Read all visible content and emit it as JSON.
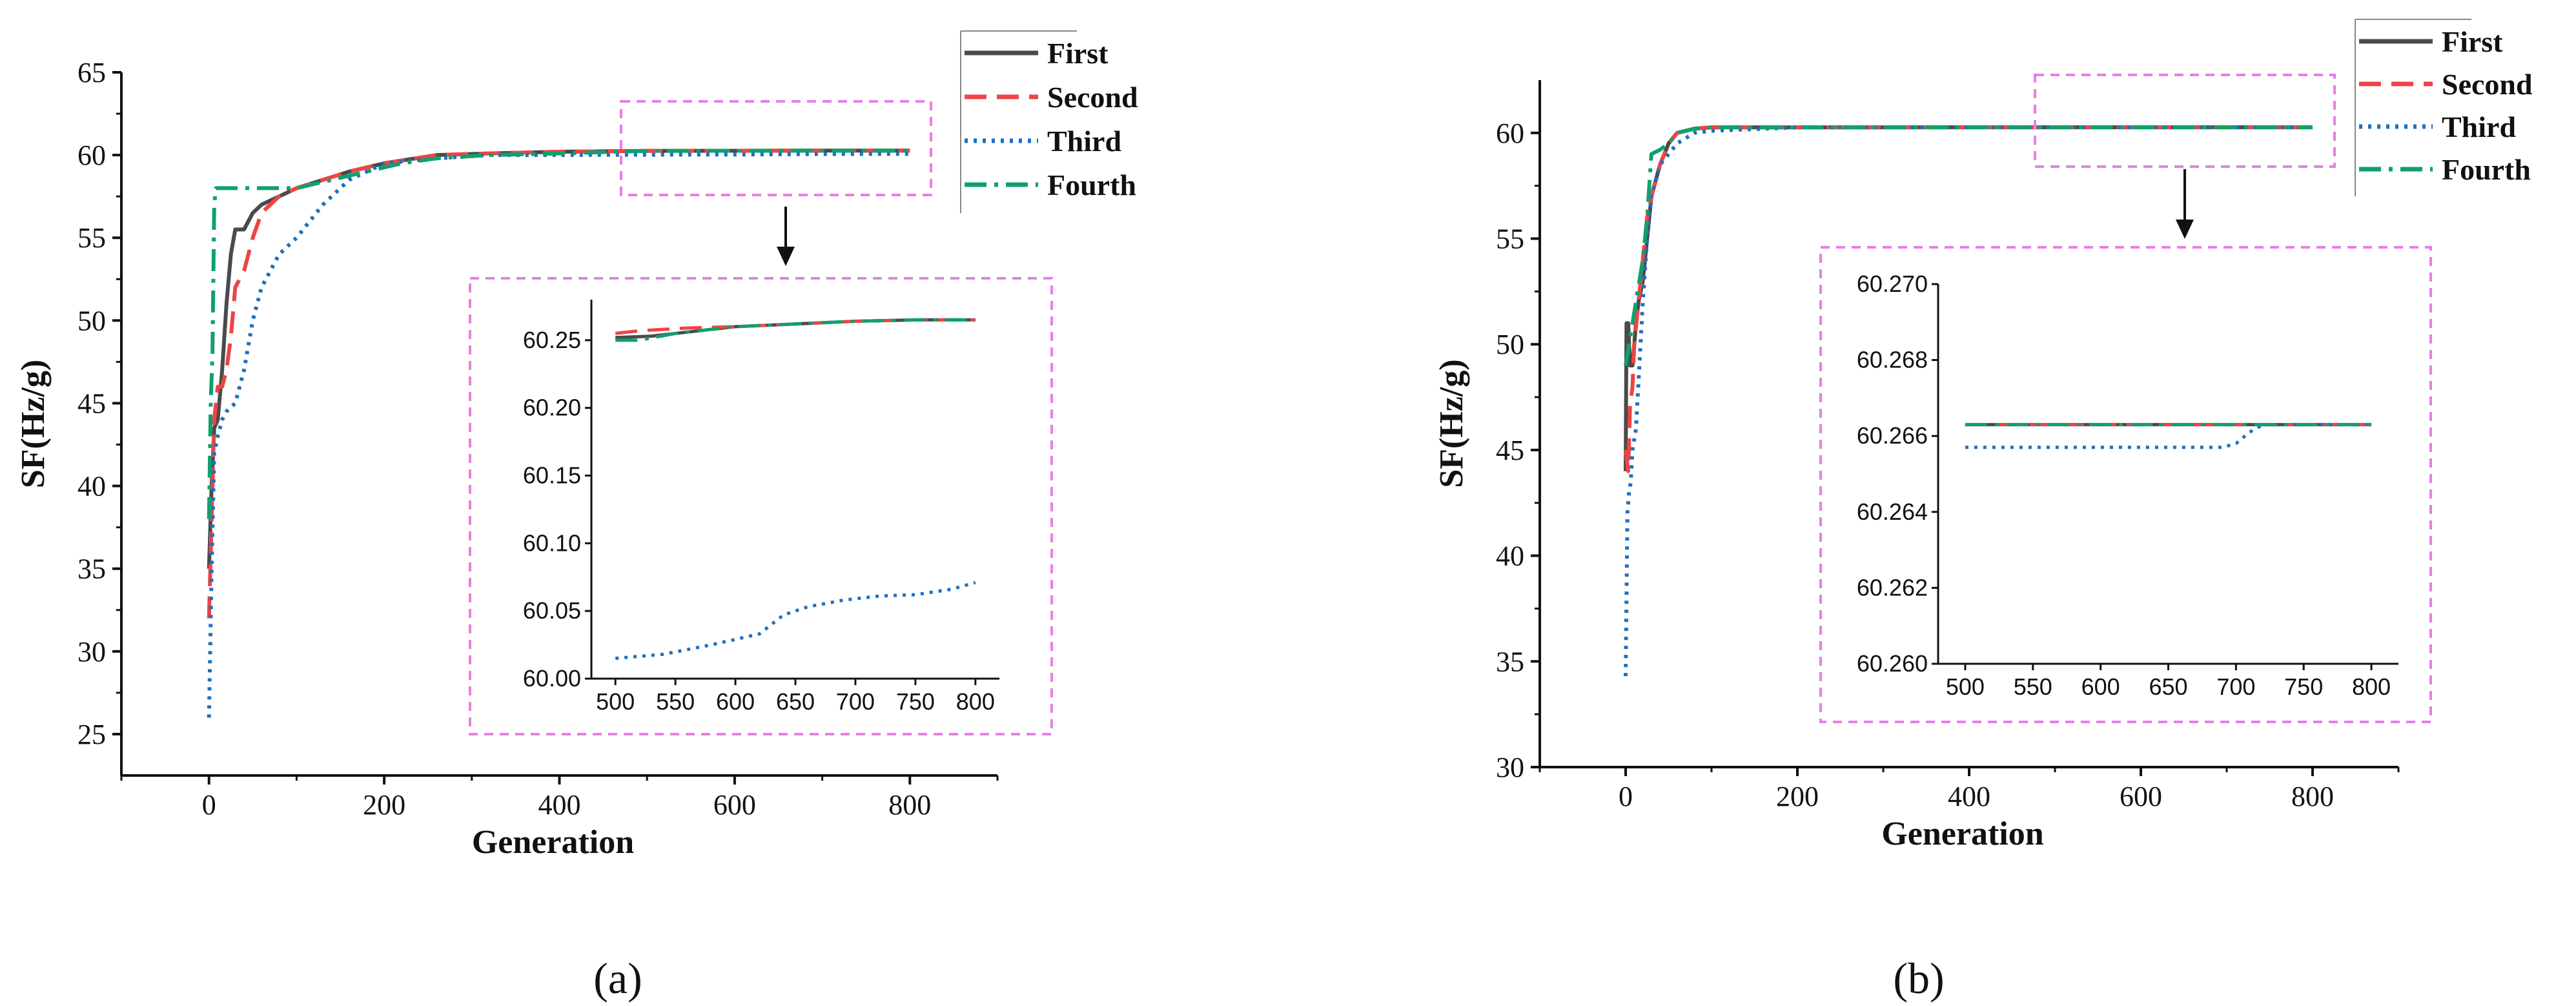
{
  "figure": {
    "panel_labels": [
      "(a)",
      "(b)"
    ]
  },
  "colors": {
    "First": "#4a4a4a",
    "Second": "#ef4444",
    "Third": "#1f6fc0",
    "Fourth": "#10a070",
    "zoom_box": "#e77ee8",
    "axes": "#111111"
  },
  "chart_data": [
    {
      "type": "line",
      "panel": "(a)",
      "xlabel": "Generation",
      "ylabel": "SF(Hz/g)",
      "xlim": [
        -100,
        900
      ],
      "ylim": [
        22.5,
        65
      ],
      "xticks": [
        0,
        200,
        400,
        600,
        800
      ],
      "yticks": [
        25,
        30,
        35,
        40,
        45,
        50,
        55,
        60,
        65
      ],
      "legend": [
        "First",
        "Second",
        "Third",
        "Fourth"
      ],
      "legend_position": "top-right",
      "series": [
        {
          "name": "First",
          "style": "solid",
          "color": "#4a4a4a",
          "x": [
            0,
            3,
            6,
            10,
            15,
            20,
            25,
            30,
            40,
            50,
            60,
            80,
            100,
            130,
            160,
            200,
            260,
            320,
            400,
            500,
            600,
            700,
            800
          ],
          "y": [
            35,
            40,
            43.5,
            44,
            47,
            51,
            54,
            55.5,
            55.5,
            56.5,
            57,
            57.5,
            58,
            58.5,
            59,
            59.5,
            60,
            60.1,
            60.2,
            60.25,
            60.26,
            60.27,
            60.27
          ]
        },
        {
          "name": "Second",
          "style": "dashed",
          "color": "#ef4444",
          "x": [
            0,
            3,
            6,
            10,
            15,
            20,
            25,
            30,
            40,
            50,
            60,
            80,
            100,
            130,
            160,
            200,
            260,
            320,
            400,
            500,
            600,
            700,
            800
          ],
          "y": [
            32,
            38,
            44,
            46,
            46,
            47,
            49,
            52,
            53,
            55,
            56.5,
            57.5,
            58,
            58.5,
            59,
            59.5,
            60,
            60.1,
            60.2,
            60.26,
            60.26,
            60.27,
            60.27
          ]
        },
        {
          "name": "Third",
          "style": "dotted",
          "color": "#1f6fc0",
          "x": [
            0,
            3,
            6,
            10,
            15,
            20,
            30,
            40,
            50,
            60,
            80,
            100,
            130,
            160,
            200,
            260,
            320,
            400,
            500,
            600,
            700,
            800
          ],
          "y": [
            26,
            35,
            42,
            43,
            44,
            44.5,
            45,
            47,
            50,
            52,
            54,
            55,
            57,
            58.5,
            59.5,
            59.8,
            60,
            60,
            60.02,
            60.03,
            60.06,
            60.07
          ]
        },
        {
          "name": "Fourth",
          "style": "dashdot",
          "color": "#10a070",
          "x": [
            0,
            2,
            4,
            6,
            8,
            10,
            60,
            100,
            140,
            180,
            220,
            260,
            320,
            400,
            500,
            600,
            700,
            800
          ],
          "y": [
            38,
            45,
            48,
            57,
            58,
            58,
            58,
            58,
            58.5,
            59,
            59.5,
            59.8,
            60,
            60.1,
            60.25,
            60.26,
            60.27,
            60.27
          ]
        }
      ],
      "inset": {
        "xlim": [
          480,
          820
        ],
        "ylim": [
          60.0,
          60.28
        ],
        "xticks": [
          500,
          550,
          600,
          650,
          700,
          750,
          800
        ],
        "yticks": [
          "60.00",
          "60.05",
          "60.10",
          "60.15",
          "60.20",
          "60.25"
        ],
        "series": [
          {
            "name": "First",
            "x": [
              500,
              530,
              560,
              600,
              650,
              700,
              750,
              800
            ],
            "y": [
              60.252,
              60.253,
              60.256,
              60.26,
              60.262,
              60.264,
              60.265,
              60.265
            ]
          },
          {
            "name": "Second",
            "x": [
              500,
              520,
              540,
              560,
              600,
              650,
              700,
              750,
              800
            ],
            "y": [
              60.255,
              60.257,
              60.258,
              60.259,
              60.26,
              60.262,
              60.264,
              60.265,
              60.265
            ]
          },
          {
            "name": "Third",
            "x": [
              500,
              540,
              580,
              620,
              640,
              660,
              690,
              720,
              750,
              780,
              800
            ],
            "y": [
              60.015,
              60.018,
              60.025,
              60.033,
              60.047,
              60.053,
              60.058,
              60.061,
              60.062,
              60.066,
              60.071
            ]
          },
          {
            "name": "Fourth",
            "x": [
              500,
              520,
              550,
              600,
              650,
              700,
              750,
              800
            ],
            "y": [
              60.25,
              60.25,
              60.255,
              60.26,
              60.262,
              60.264,
              60.265,
              60.265
            ]
          }
        ]
      }
    },
    {
      "type": "line",
      "panel": "(b)",
      "xlabel": "Generation",
      "ylabel": "SF(Hz/g)",
      "xlim": [
        -100,
        900
      ],
      "ylim": [
        30,
        62.5
      ],
      "xticks": [
        0,
        200,
        400,
        600,
        800
      ],
      "yticks": [
        30,
        35,
        40,
        45,
        50,
        55,
        60
      ],
      "legend": [
        "First",
        "Second",
        "Third",
        "Fourth"
      ],
      "legend_position": "top-right",
      "series": [
        {
          "name": "First",
          "style": "solid",
          "color": "#4a4a4a",
          "x": [
            0,
            1,
            3,
            5,
            8,
            10,
            12,
            15,
            20,
            25,
            30,
            40,
            50,
            60,
            80,
            100,
            200,
            400,
            600,
            800
          ],
          "y": [
            44,
            51,
            51,
            49,
            49,
            50,
            51,
            52,
            53,
            55,
            57,
            58.5,
            59.5,
            60,
            60.2,
            60.26,
            60.26,
            60.266,
            60.266,
            60.266
          ]
        },
        {
          "name": "Second",
          "style": "dashed",
          "color": "#ef4444",
          "x": [
            0,
            3,
            5,
            8,
            10,
            15,
            20,
            25,
            30,
            40,
            50,
            60,
            80,
            100,
            200,
            400,
            600,
            800
          ],
          "y": [
            45,
            44,
            47,
            48,
            50,
            52,
            54,
            56,
            57,
            58.5,
            59.5,
            60,
            60.2,
            60.26,
            60.26,
            60.266,
            60.266,
            60.266
          ]
        },
        {
          "name": "Third",
          "style": "dotted",
          "color": "#1f6fc0",
          "x": [
            0,
            2,
            4,
            6,
            8,
            12,
            16,
            20,
            25,
            30,
            40,
            50,
            60,
            80,
            100,
            200,
            400,
            600,
            800
          ],
          "y": [
            34.3,
            42,
            43,
            43.5,
            45,
            46,
            49,
            52,
            55,
            57,
            58.5,
            59,
            59.5,
            60,
            60.1,
            60.26,
            60.266,
            60.266,
            60.266
          ]
        },
        {
          "name": "Fourth",
          "style": "dashdot",
          "color": "#10a070",
          "x": [
            0,
            4,
            8,
            12,
            16,
            20,
            25,
            30,
            40,
            50,
            60,
            80,
            100,
            200,
            400,
            600,
            800
          ],
          "y": [
            49,
            50,
            51,
            52,
            53,
            54,
            56,
            59,
            59.2,
            59.5,
            60,
            60.2,
            60.26,
            60.26,
            60.266,
            60.266,
            60.266
          ]
        }
      ],
      "inset": {
        "xlim": [
          480,
          820
        ],
        "ylim": [
          60.26,
          60.27
        ],
        "xticks": [
          500,
          550,
          600,
          650,
          700,
          750,
          800
        ],
        "yticks": [
          "60.260",
          "60.262",
          "60.264",
          "60.266",
          "60.268",
          "60.270"
        ],
        "series": [
          {
            "name": "First",
            "x": [
              500,
              800
            ],
            "y": [
              60.2663,
              60.2663
            ]
          },
          {
            "name": "Second",
            "x": [
              500,
              800
            ],
            "y": [
              60.2663,
              60.2663
            ]
          },
          {
            "name": "Third",
            "x": [
              500,
              690,
              700,
              710,
              720,
              800
            ],
            "y": [
              60.2657,
              60.2657,
              60.2658,
              60.2661,
              60.2663,
              60.2663
            ]
          },
          {
            "name": "Fourth",
            "x": [
              500,
              800
            ],
            "y": [
              60.2663,
              60.2663
            ]
          }
        ]
      }
    }
  ]
}
